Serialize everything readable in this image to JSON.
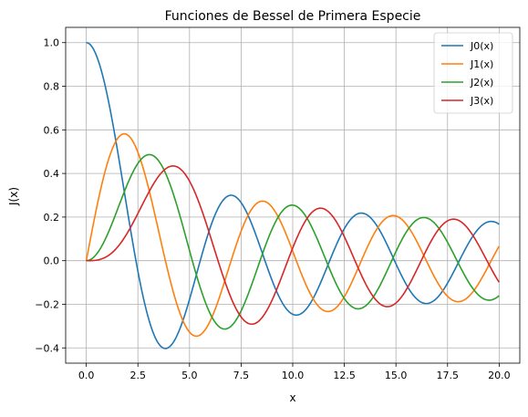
{
  "chart_data": {
    "type": "line",
    "title": "Funciones de Bessel de Primera Especie",
    "xlabel": "x",
    "ylabel": "J(x)",
    "xlim": [
      -1.0,
      21.0
    ],
    "ylim": [
      -0.47,
      1.07
    ],
    "xticks": [
      0.0,
      2.5,
      5.0,
      7.5,
      10.0,
      12.5,
      15.0,
      17.5,
      20.0
    ],
    "xtick_labels": [
      "0.0",
      "2.5",
      "5.0",
      "7.5",
      "10.0",
      "12.5",
      "15.0",
      "17.5",
      "20.0"
    ],
    "yticks": [
      -0.4,
      -0.2,
      0.0,
      0.2,
      0.4,
      0.6,
      0.8,
      1.0
    ],
    "ytick_labels": [
      "−0.4",
      "−0.2",
      "0.0",
      "0.2",
      "0.4",
      "0.6",
      "0.8",
      "1.0"
    ],
    "grid": true,
    "legend_position": "top-right",
    "x_range": [
      0,
      20
    ],
    "series": [
      {
        "name": "J0(x)",
        "order": 0,
        "color": "#1f77b4"
      },
      {
        "name": "J1(x)",
        "order": 1,
        "color": "#ff7f0e"
      },
      {
        "name": "J2(x)",
        "order": 2,
        "color": "#2ca02c"
      },
      {
        "name": "J3(x)",
        "order": 3,
        "color": "#d62728"
      }
    ]
  }
}
